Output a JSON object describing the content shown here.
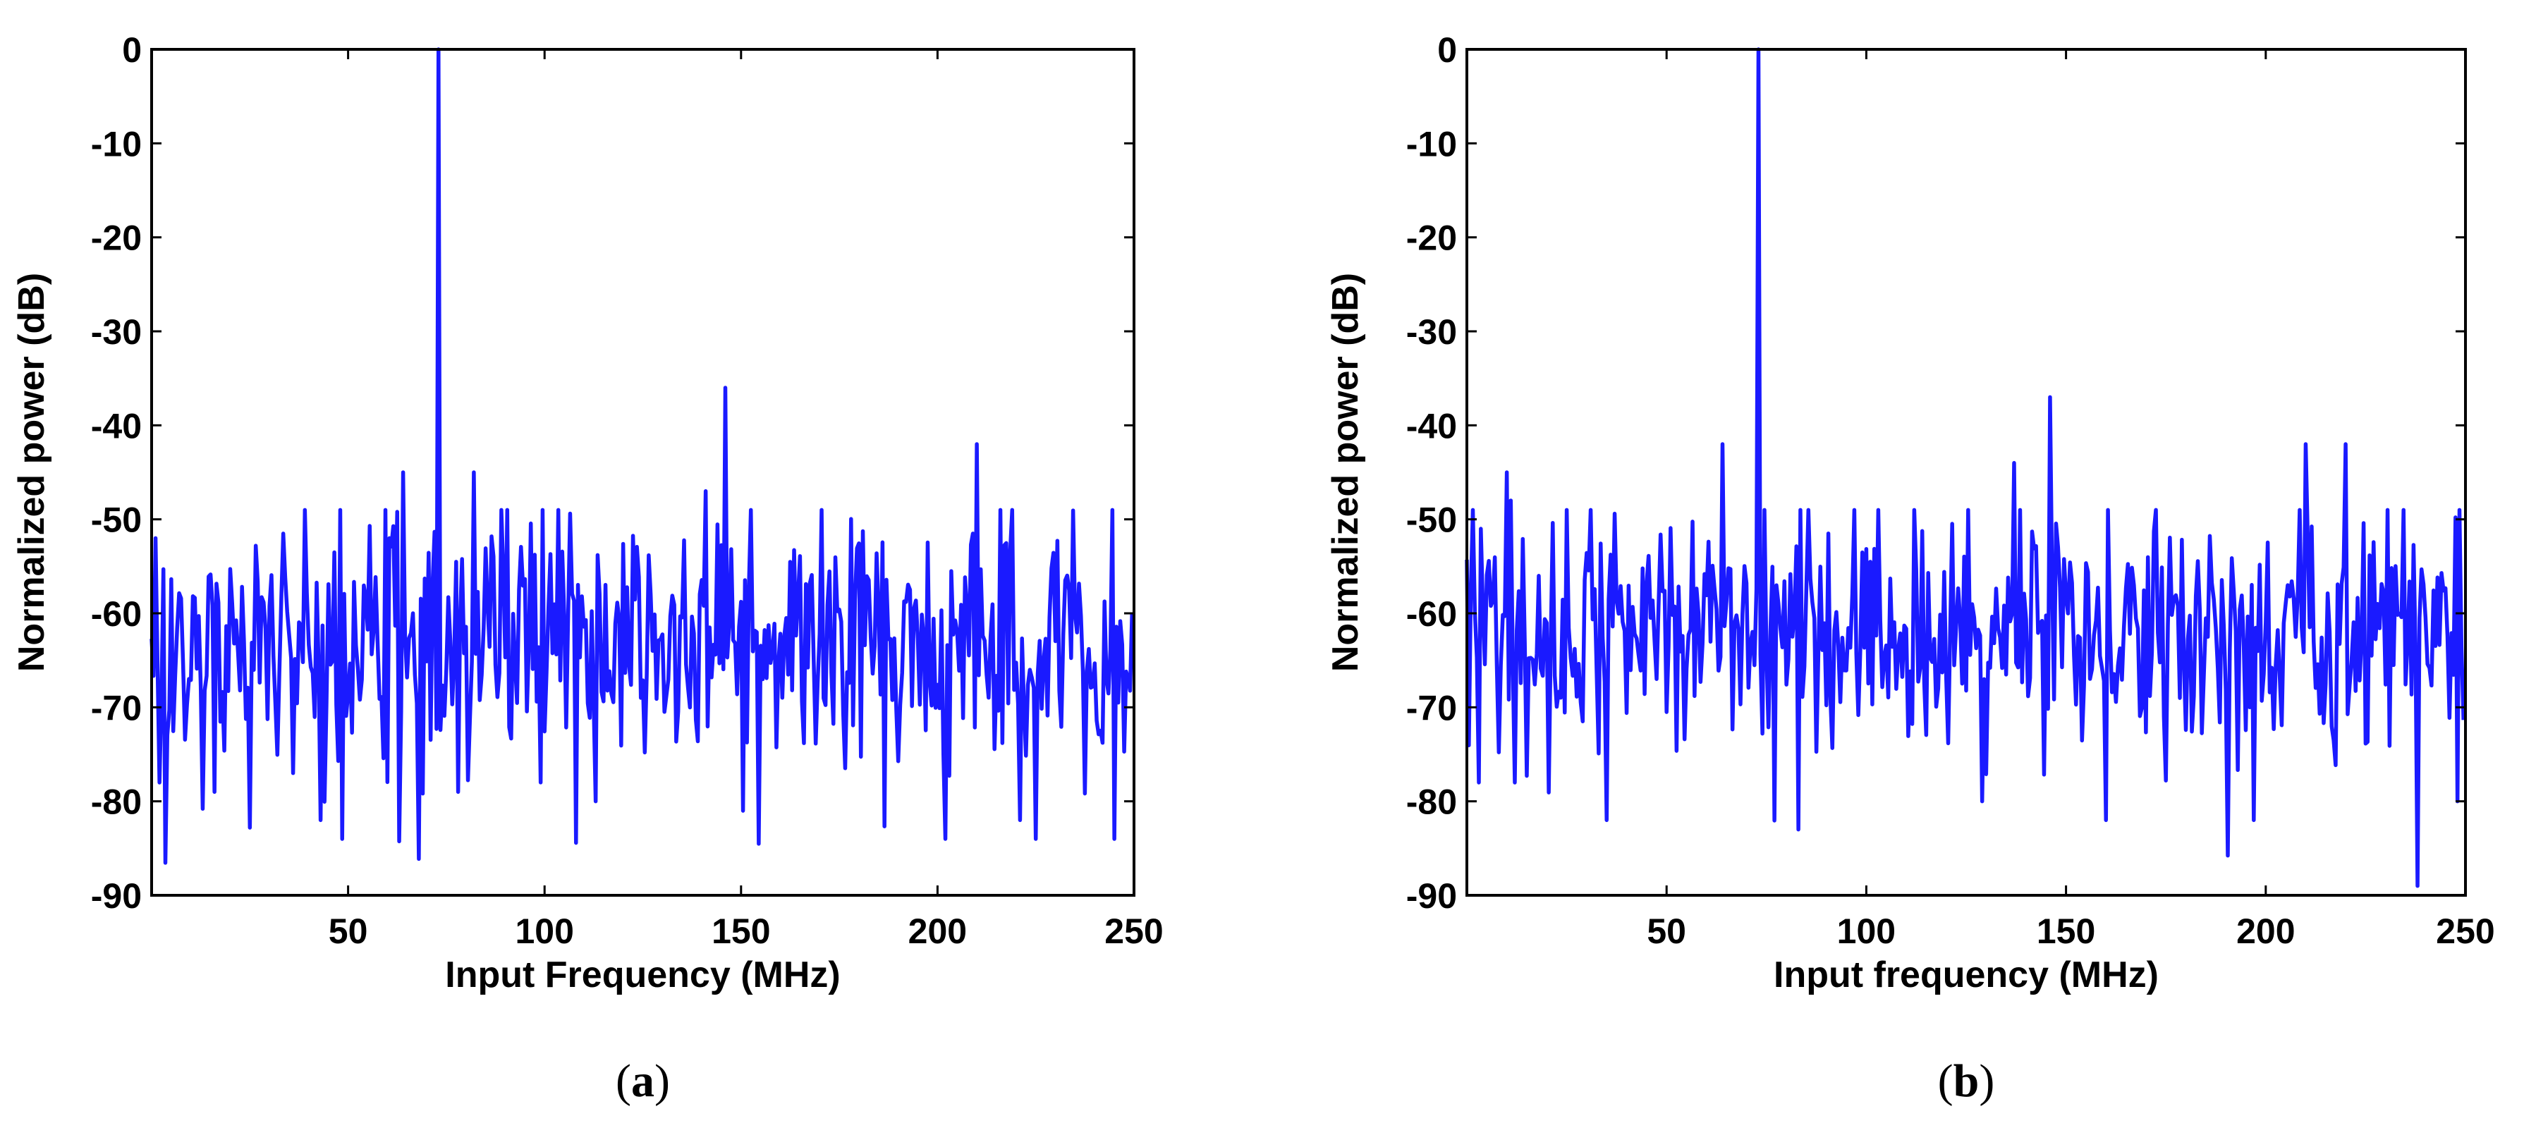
{
  "chart_data": [
    {
      "type": "line",
      "panel_label": "a",
      "xlabel": "Input Frequency (MHz)",
      "ylabel": "Normalized power (dB)",
      "xlim": [
        0,
        250
      ],
      "ylim": [
        -90,
        0
      ],
      "x_ticks": [
        50,
        100,
        150,
        200,
        250
      ],
      "y_ticks": [
        0,
        -10,
        -20,
        -30,
        -40,
        -50,
        -60,
        -70,
        -80,
        -90
      ],
      "grid": false,
      "series_color": "#1a1aff",
      "noise_seed": 17,
      "series": [
        {
          "x_start": 0,
          "x_step": 0.5,
          "points": 500,
          "noise_floor_db": -63,
          "noise_spread_db": 6.5,
          "features": [
            {
              "x": 73,
              "y": 0
            },
            {
              "x": 146,
              "y": -36
            },
            {
              "x": 210,
              "y": -42
            },
            {
              "x": 64,
              "y": -45
            },
            {
              "x": 82,
              "y": -45
            },
            {
              "x": 1,
              "y": -52
            },
            {
              "x": 48,
              "y": -49
            },
            {
              "x": 141,
              "y": -47
            },
            {
              "x": 48.5,
              "y": -84
            },
            {
              "x": 202,
              "y": -84
            },
            {
              "x": 225,
              "y": -84
            },
            {
              "x": 245,
              "y": -84
            },
            {
              "x": 43,
              "y": -82
            },
            {
              "x": 221,
              "y": -82
            },
            {
              "x": 113,
              "y": -80
            },
            {
              "x": 2,
              "y": -78
            },
            {
              "x": 16,
              "y": -79
            },
            {
              "x": 78,
              "y": -79
            },
            {
              "x": 36,
              "y": -77
            }
          ]
        }
      ]
    },
    {
      "type": "line",
      "panel_label": "b",
      "xlabel": "Input frequency (MHz)",
      "ylabel": "Normalized power (dB)",
      "xlim": [
        0,
        250
      ],
      "ylim": [
        -90,
        0
      ],
      "x_ticks": [
        50,
        100,
        150,
        200,
        250
      ],
      "y_ticks": [
        0,
        -10,
        -20,
        -30,
        -40,
        -50,
        -60,
        -70,
        -80,
        -90
      ],
      "grid": false,
      "series_color": "#1a1aff",
      "noise_seed": 41,
      "series": [
        {
          "x_start": 0,
          "x_step": 0.5,
          "points": 500,
          "noise_floor_db": -62,
          "noise_spread_db": 6.0,
          "features": [
            {
              "x": 73,
              "y": 0
            },
            {
              "x": 146,
              "y": -37
            },
            {
              "x": 64,
              "y": -42
            },
            {
              "x": 210,
              "y": -42
            },
            {
              "x": 220,
              "y": -42
            },
            {
              "x": 137,
              "y": -44
            },
            {
              "x": 10,
              "y": -45
            },
            {
              "x": 11,
              "y": -48
            },
            {
              "x": 238,
              "y": -89
            },
            {
              "x": 83,
              "y": -83
            },
            {
              "x": 35,
              "y": -82
            },
            {
              "x": 197,
              "y": -82
            },
            {
              "x": 160,
              "y": -82
            },
            {
              "x": 129,
              "y": -80
            },
            {
              "x": 3,
              "y": -78
            },
            {
              "x": 12,
              "y": -78
            },
            {
              "x": 248,
              "y": -80
            }
          ]
        }
      ]
    }
  ]
}
